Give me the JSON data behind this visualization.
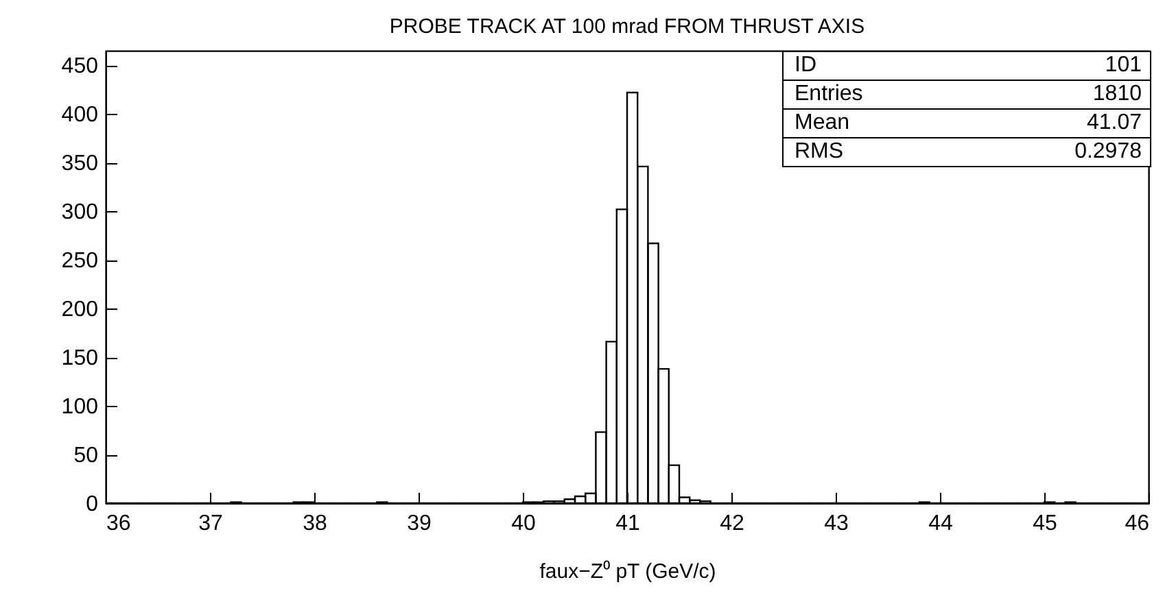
{
  "chart_data": {
    "type": "histogram",
    "title": "PROBE TRACK AT 100 mrad FROM THRUST AXIS",
    "xlabel": "faux−Z⁰ pT (GeV/c)",
    "bins": [
      36.0,
      36.1,
      36.2,
      36.3,
      36.4,
      36.5,
      36.6,
      36.7,
      36.8,
      36.9,
      37.0,
      37.1,
      37.2,
      37.3,
      37.4,
      37.5,
      37.6,
      37.7,
      37.8,
      37.9,
      38.0,
      38.1,
      38.2,
      38.3,
      38.4,
      38.5,
      38.6,
      38.7,
      38.8,
      38.9,
      39.0,
      39.1,
      39.2,
      39.3,
      39.4,
      39.5,
      39.6,
      39.7,
      39.8,
      39.9,
      40.0,
      40.1,
      40.2,
      40.3,
      40.4,
      40.5,
      40.6,
      40.7,
      40.8,
      40.9,
      41.0,
      41.1,
      41.2,
      41.3,
      41.4,
      41.5,
      41.6,
      41.7,
      41.8,
      41.9,
      42.0,
      42.1,
      42.2,
      42.3,
      42.4,
      42.5,
      42.6,
      42.7,
      42.8,
      42.9,
      43.0,
      43.1,
      43.2,
      43.3,
      43.4,
      43.5,
      43.6,
      43.7,
      43.8,
      43.9,
      44.0,
      44.1,
      44.2,
      44.3,
      44.4,
      44.5,
      44.6,
      44.7,
      44.8,
      44.9,
      45.0,
      45.1,
      45.2,
      45.3,
      45.4,
      45.5,
      45.6,
      45.7,
      45.8,
      45.9,
      46.0
    ],
    "values": [
      0,
      0,
      0,
      0,
      0,
      0,
      0,
      0,
      0,
      0,
      0,
      0,
      1,
      0,
      0,
      0,
      0,
      0,
      1,
      1,
      0,
      0,
      0,
      0,
      0,
      0,
      1,
      0,
      0,
      0,
      0,
      0,
      0,
      0,
      0,
      0,
      0,
      0,
      0,
      0,
      1,
      1,
      2,
      2,
      4,
      7,
      10,
      73,
      166,
      302,
      422,
      346,
      267,
      138,
      39,
      6,
      3,
      2,
      0,
      0,
      0,
      0,
      0,
      0,
      0,
      0,
      0,
      0,
      0,
      0,
      0,
      0,
      0,
      0,
      0,
      0,
      0,
      0,
      1,
      0,
      0,
      0,
      0,
      0,
      0,
      0,
      0,
      0,
      0,
      0,
      1,
      0,
      1,
      0,
      0,
      0,
      0,
      0,
      0,
      0
    ],
    "color": "#000000",
    "xlim": [
      36,
      46
    ],
    "xticks": [
      36,
      37,
      38,
      39,
      40,
      41,
      42,
      43,
      44,
      45,
      46
    ],
    "ylim": [
      0,
      465
    ],
    "yticks": [
      0,
      50,
      100,
      150,
      200,
      250,
      300,
      350,
      400,
      450
    ],
    "annotations": [
      "ID",
      "101",
      "Entries",
      "1810",
      "Mean",
      "41.07",
      "RMS",
      "0.2978"
    ]
  }
}
